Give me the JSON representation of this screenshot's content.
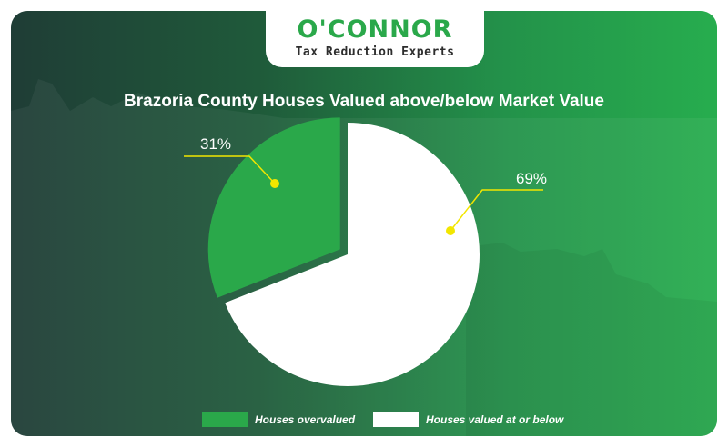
{
  "brand": {
    "name": "O'CONNOR",
    "tagline": "Tax Reduction Experts"
  },
  "colors": {
    "overvalued": "#2aa84a",
    "at_or_below": "#ffffff",
    "leader": "#f2e600"
  },
  "chart_data": {
    "type": "pie",
    "title": "Brazoria County Houses Valued above/below Market Value",
    "categories": [
      "Houses overvalued",
      "Houses valued at or below"
    ],
    "values": [
      31,
      69
    ],
    "labels": [
      "31%",
      "69%"
    ],
    "legend_position": "bottom"
  }
}
